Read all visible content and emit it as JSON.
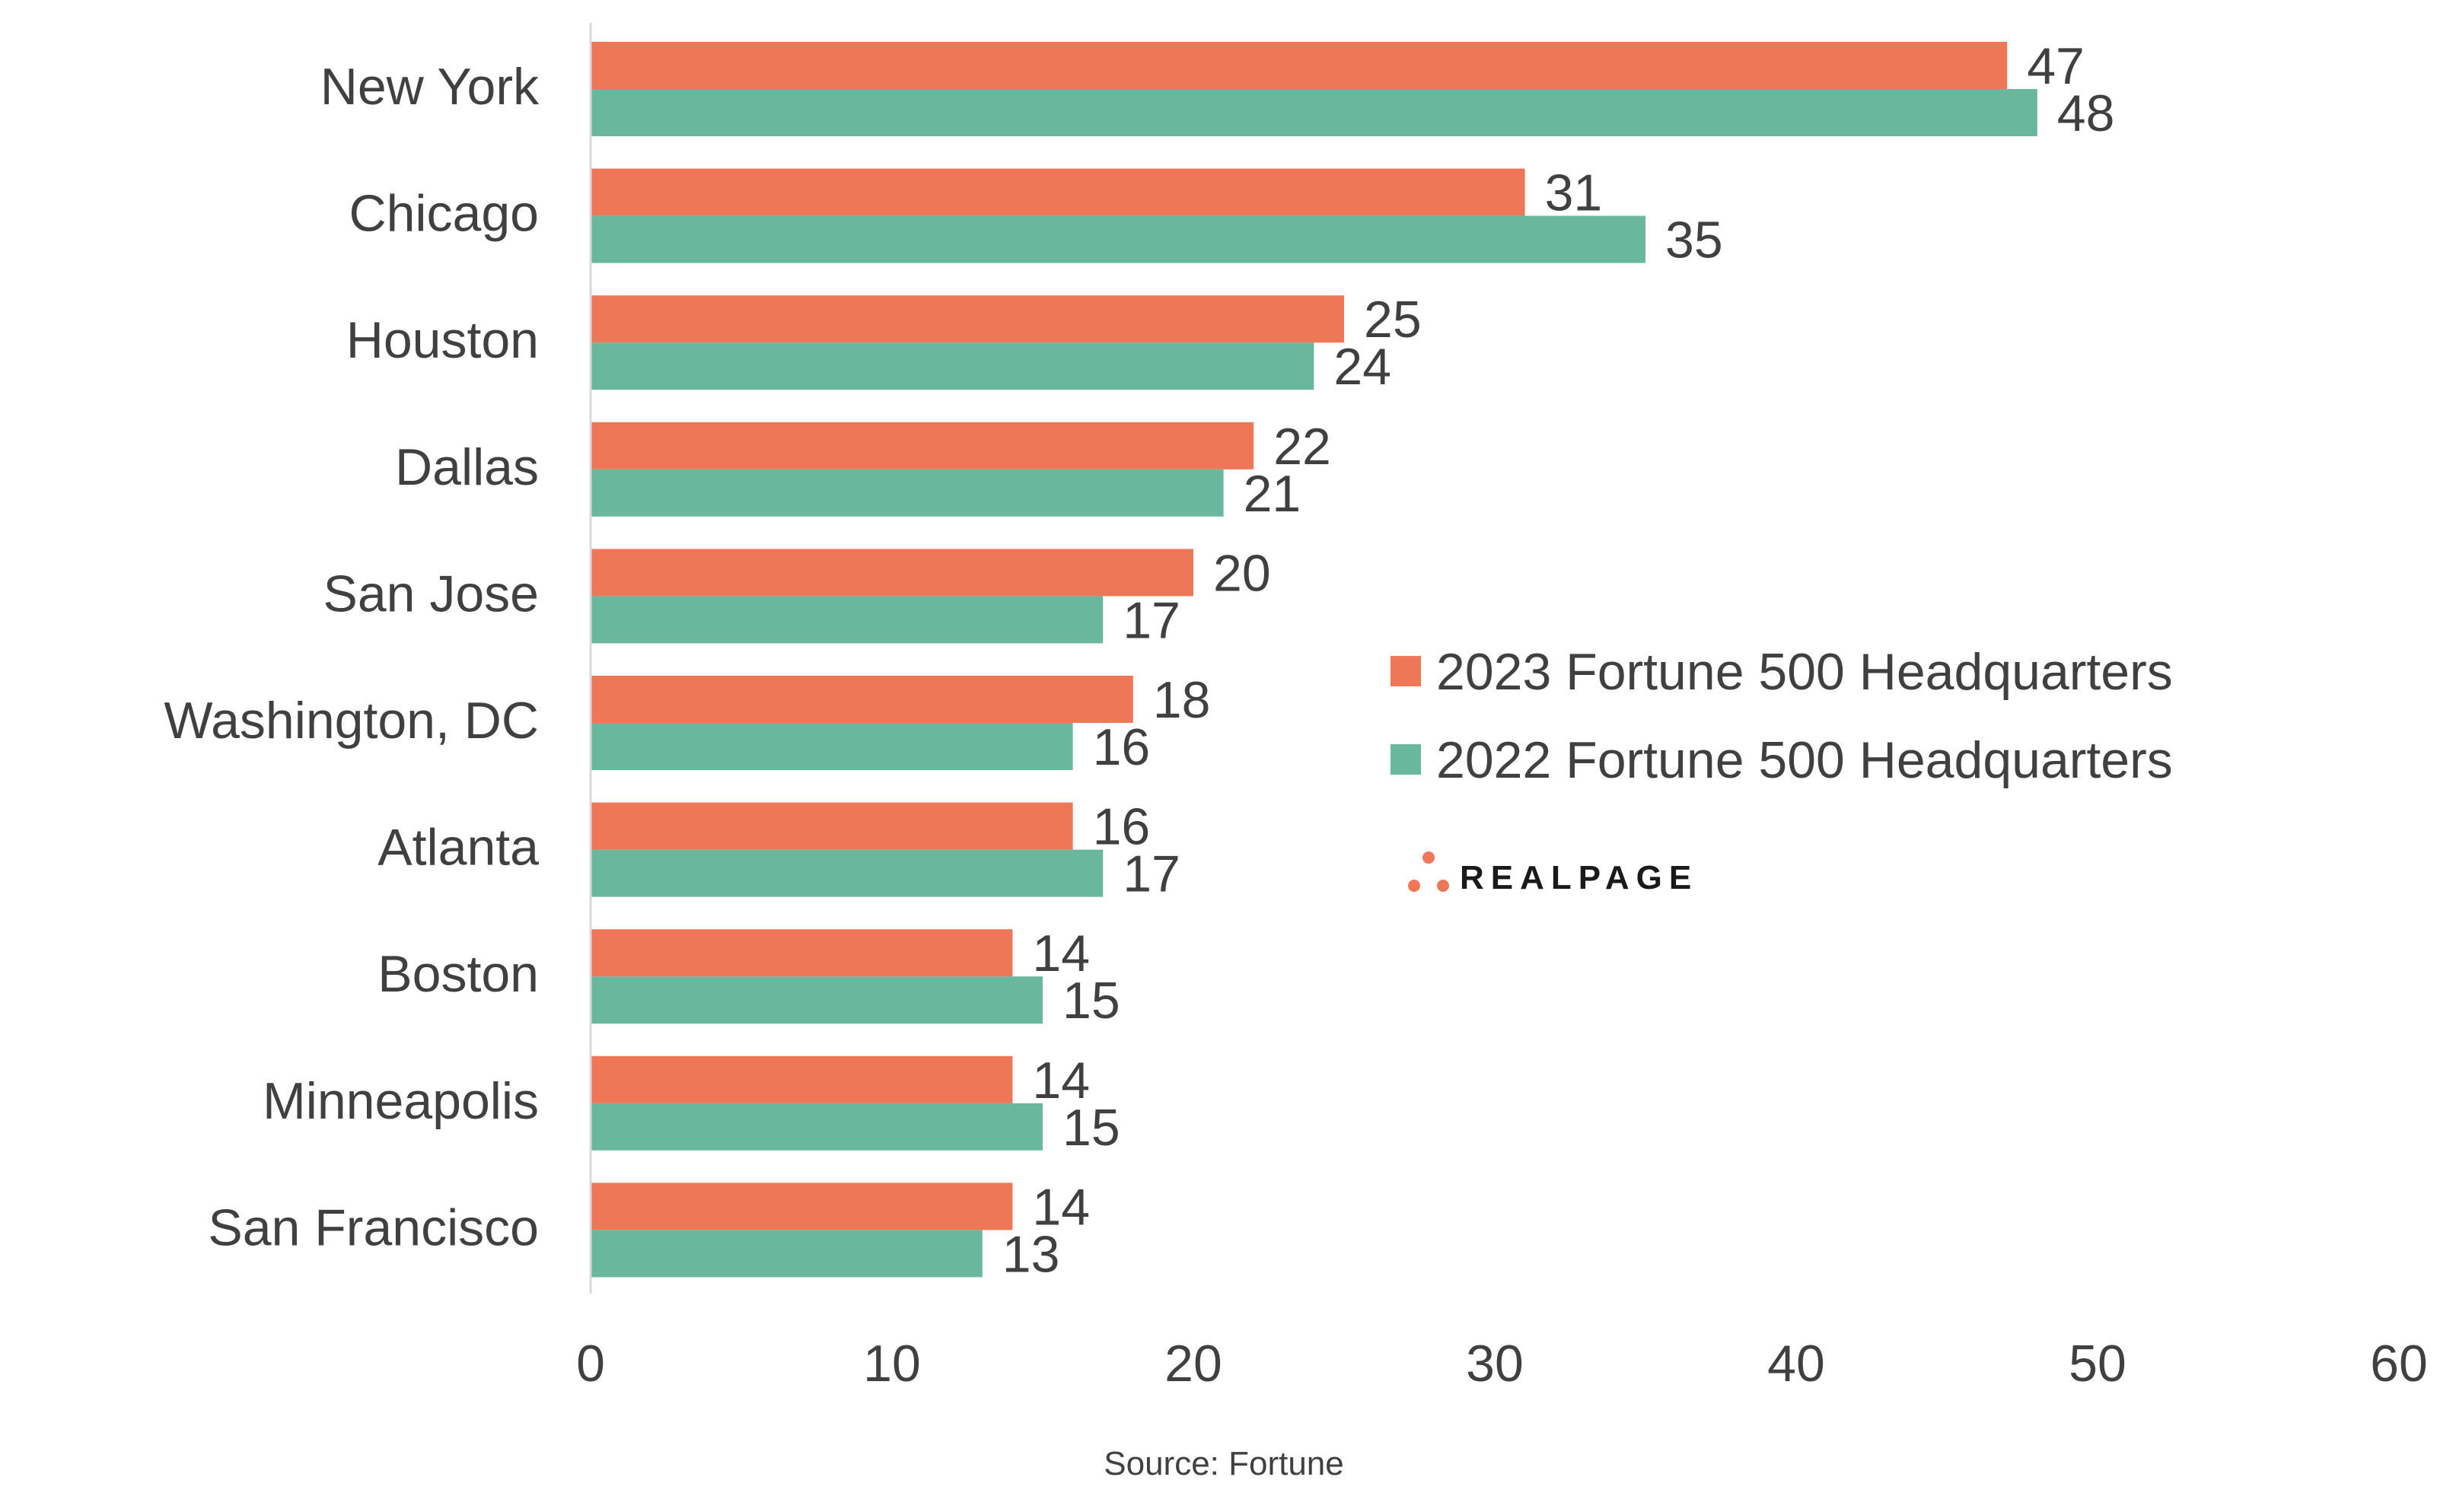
{
  "chart_data": {
    "type": "bar",
    "orientation": "horizontal",
    "categories": [
      "New York",
      "Chicago",
      "Houston",
      "Dallas",
      "San Jose",
      "Washington, DC",
      "Atlanta",
      "Boston",
      "Minneapolis",
      "San Francisco"
    ],
    "series": [
      {
        "name": "2023 Fortune 500 Headquarters",
        "color": "#ED7757",
        "values": [
          47,
          31,
          25,
          22,
          20,
          18,
          16,
          14,
          14,
          14
        ]
      },
      {
        "name": "2022 Fortune 500 Headquarters",
        "color": "#69B79C",
        "values": [
          48,
          35,
          24,
          21,
          17,
          16,
          17,
          15,
          15,
          13
        ]
      }
    ],
    "xlim": [
      0,
      60
    ],
    "xticks": [
      "0",
      "10",
      "20",
      "30",
      "40",
      "50",
      "60"
    ],
    "grid": false,
    "legend_position": "right-middle",
    "data_labels": true,
    "source": "Source: Fortune"
  },
  "brand": {
    "name": "REALPAGE",
    "icon": "three-dot-logo-icon",
    "accent": "#ED7757"
  }
}
